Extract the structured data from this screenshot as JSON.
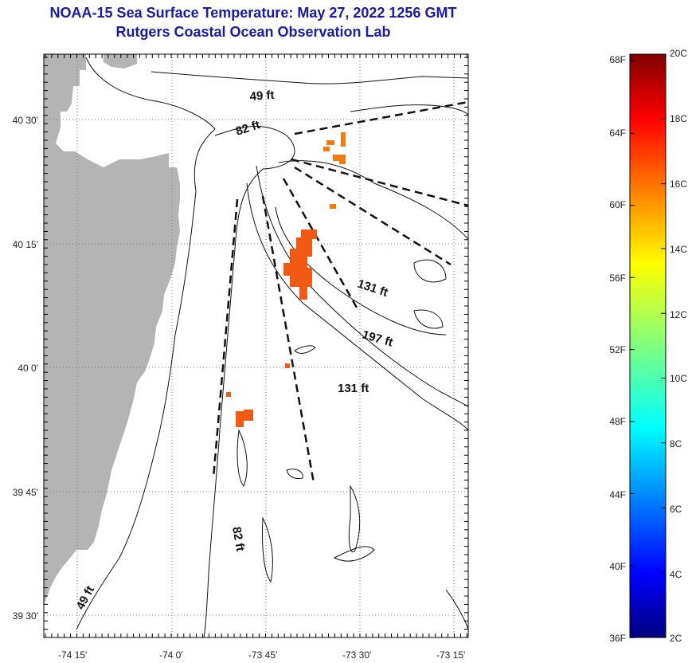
{
  "title": {
    "line1": "NOAA-15 Sea Surface Temperature:  May 27, 2022 1256 GMT",
    "line2": "Rutgers Coastal Ocean Observation Lab"
  },
  "map": {
    "lat_labels": [
      "40 30'",
      "40 15'",
      "40 0'",
      "39 45'",
      "39 30'"
    ],
    "lon_labels": [
      "-74 15'",
      "-74 0'",
      "-73 45'",
      "-73 30'",
      "-73 15'"
    ],
    "depth_labels": [
      "49 ft",
      "82 ft",
      "131 ft",
      "197 ft",
      "131 ft",
      "82 ft",
      "49 ft"
    ],
    "colors": {
      "land": "#b4b4b4",
      "sst_patch": "#f05a14",
      "sst_patch_alt": "#f07d14",
      "title": "#1a1aa6"
    }
  },
  "colorbar": {
    "fahrenheit_labels": [
      "68F",
      "64F",
      "60F",
      "56F",
      "52F",
      "48F",
      "44F",
      "40F",
      "36F"
    ],
    "celsius_labels": [
      "20C",
      "18C",
      "16C",
      "14C",
      "12C",
      "10C",
      "8C",
      "6C",
      "4C",
      "2C"
    ]
  }
}
